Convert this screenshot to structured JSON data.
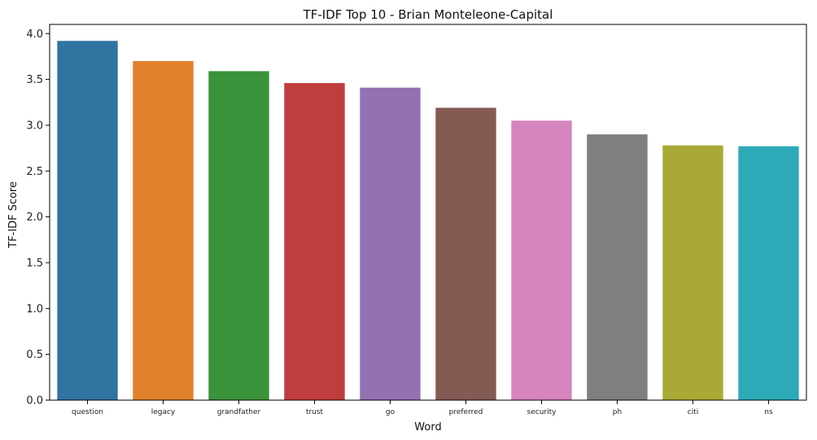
{
  "chart_data": {
    "type": "bar",
    "title": "TF-IDF Top 10 - Brian Monteleone-Capital",
    "xlabel": "Word",
    "ylabel": "TF-IDF Score",
    "categories": [
      "question",
      "legacy",
      "grandfather",
      "trust",
      "go",
      "preferred",
      "security",
      "ph",
      "citi",
      "ns"
    ],
    "values": [
      3.92,
      3.7,
      3.59,
      3.46,
      3.41,
      3.19,
      3.05,
      2.9,
      2.78,
      2.77
    ],
    "colors": [
      "#3274a1",
      "#e1812c",
      "#3a923a",
      "#c03d3e",
      "#9372b2",
      "#845b53",
      "#d684bd",
      "#7f7f7f",
      "#a9aa35",
      "#2ea9b8"
    ],
    "ylim": [
      0,
      4.1
    ],
    "yticks": [
      "0.0",
      "0.5",
      "1.0",
      "1.5",
      "2.0",
      "2.5",
      "3.0",
      "3.5",
      "4.0"
    ],
    "grid": false,
    "legend": "none"
  }
}
